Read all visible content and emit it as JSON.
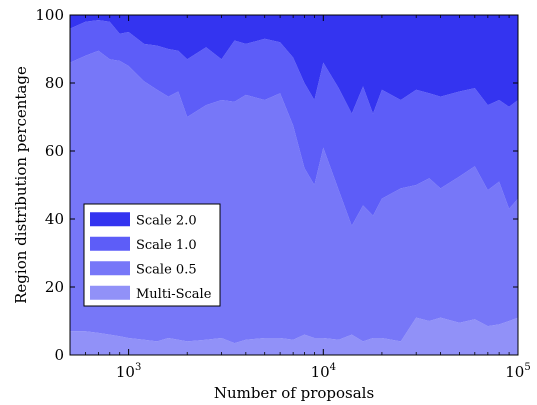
{
  "chart_data": {
    "type": "area",
    "stacked": true,
    "title": "",
    "xlabel": "Number of proposals",
    "ylabel": "Region distribution percentage",
    "xscale": "log",
    "xlim": [
      500,
      100000
    ],
    "ylim": [
      0,
      100
    ],
    "grid": false,
    "legend_position": "center-left",
    "x_ticks": [
      {
        "value": 1000,
        "base": "10",
        "exp": "3"
      },
      {
        "value": 10000,
        "base": "10",
        "exp": "4"
      },
      {
        "value": 100000,
        "base": "10",
        "exp": "5"
      }
    ],
    "y_ticks": [
      0,
      20,
      40,
      60,
      80,
      100
    ],
    "x": [
      500,
      600,
      700,
      800,
      900,
      1000,
      1200,
      1400,
      1600,
      1800,
      2000,
      2500,
      3000,
      3500,
      4000,
      5000,
      6000,
      7000,
      8000,
      9000,
      10000,
      12000,
      14000,
      16000,
      18000,
      20000,
      25000,
      30000,
      35000,
      40000,
      50000,
      60000,
      70000,
      80000,
      90000,
      100000
    ],
    "series": [
      {
        "name": "Multi-Scale",
        "color": "#9191f8",
        "values": [
          7,
          7,
          6.5,
          6,
          5.5,
          5,
          4.5,
          4,
          5,
          4.5,
          4,
          4.5,
          5,
          3.5,
          4.5,
          5,
          5,
          4.5,
          6,
          5,
          5,
          4.5,
          6,
          4,
          5,
          5,
          4,
          11,
          10,
          11,
          9.5,
          10.5,
          8.5,
          9,
          10,
          11
        ]
      },
      {
        "name": "Scale 0.5",
        "color": "#7777f8",
        "values": [
          79,
          81,
          83,
          81,
          81,
          80,
          76,
          74,
          71,
          73,
          66,
          69,
          70,
          71,
          72,
          70,
          72,
          63,
          49,
          45,
          56,
          44,
          32,
          40,
          36,
          41,
          45,
          39,
          42,
          38,
          43,
          45,
          40,
          42,
          33,
          35
        ]
      },
      {
        "name": "Scale 1.0",
        "color": "#5d5df8",
        "values": [
          10,
          10,
          9,
          11,
          8,
          10,
          11,
          13,
          14,
          12,
          17,
          17,
          12,
          18,
          15,
          18,
          15,
          20,
          25,
          25,
          25,
          30,
          33,
          35,
          30,
          32,
          26,
          28,
          25,
          27,
          25,
          23,
          25,
          24,
          30,
          29
        ]
      },
      {
        "name": "Scale 2.0",
        "color": "#3434f0",
        "values": [
          4,
          2,
          1.5,
          2,
          5.5,
          5,
          8.5,
          9,
          10,
          10.5,
          13,
          9.5,
          13,
          7.5,
          8.5,
          7,
          8,
          12.5,
          20,
          25,
          14,
          21.5,
          29,
          21,
          29,
          22,
          25,
          22,
          23,
          24,
          22.5,
          21.5,
          26.5,
          25,
          27,
          25
        ]
      }
    ]
  }
}
